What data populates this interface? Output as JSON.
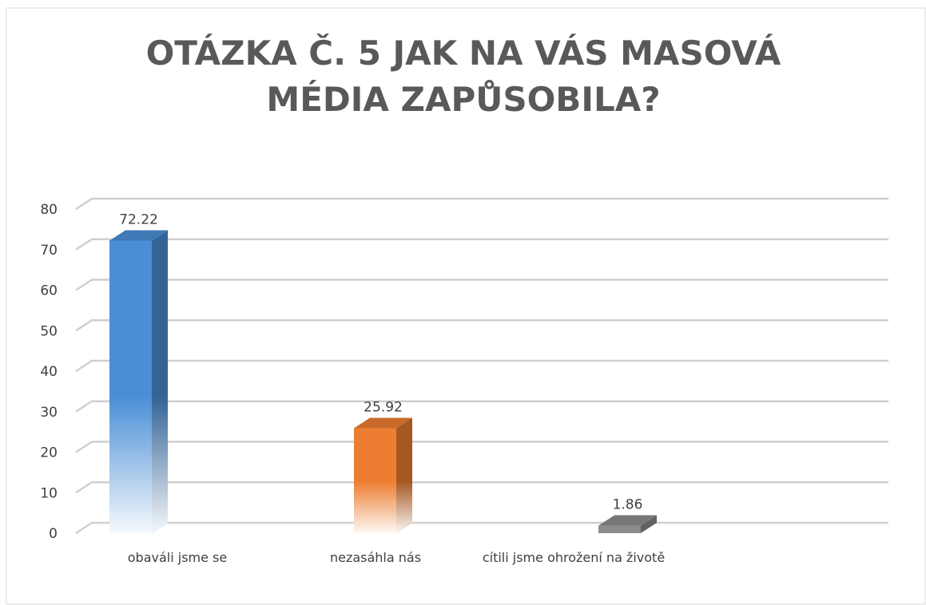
{
  "chart_data": {
    "type": "bar3d",
    "title": "OTÁZKA Č. 5 JAK NA VÁS MASOVÁ MÉDIA ZAPŮSOBILA?",
    "categories": [
      "obaváli jsme se",
      "nezasáhla nás",
      "cítili jsme ohrožení na životě"
    ],
    "values": [
      72.22,
      25.92,
      1.86
    ],
    "colors": [
      "#4a8fd6",
      "#ed7d31",
      "#8c8c8c"
    ],
    "ylim": [
      0,
      80
    ],
    "yticks": [
      0,
      10,
      20,
      30,
      40,
      50,
      60,
      70,
      80
    ],
    "grid": true
  }
}
